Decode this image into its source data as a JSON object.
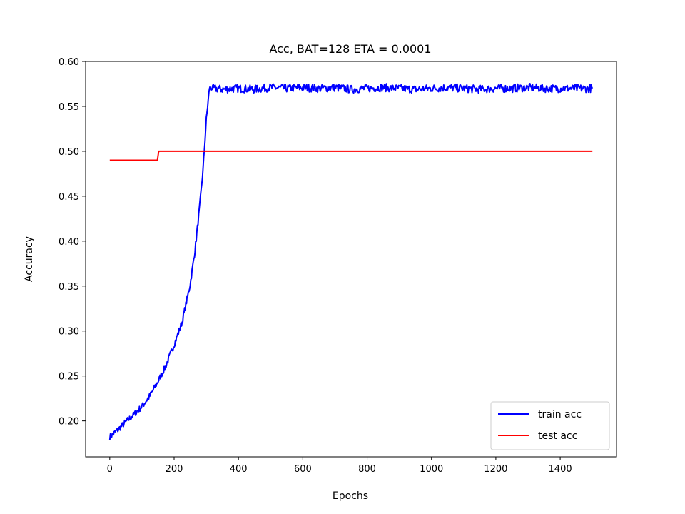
{
  "chart_data": {
    "type": "line",
    "title": "Acc, BAT=128 ETA = 0.0001",
    "xlabel": "Epochs",
    "ylabel": "Accuracy",
    "xlim": [
      -75,
      1575
    ],
    "ylim": [
      0.16,
      0.6
    ],
    "xticks": [
      0,
      200,
      400,
      600,
      800,
      1000,
      1200,
      1400
    ],
    "yticks": [
      0.2,
      0.25,
      0.3,
      0.35,
      0.4,
      0.45,
      0.5,
      0.55,
      0.6
    ],
    "grid": false,
    "legend_position": "lower-right",
    "series": [
      {
        "name": "train acc",
        "color": "#0000ff",
        "x": [
          0,
          25,
          50,
          75,
          100,
          125,
          150,
          175,
          200,
          225,
          250,
          265,
          280,
          290,
          300,
          310,
          320,
          350,
          400,
          450,
          500,
          550,
          600,
          650,
          700,
          750,
          800,
          850,
          900,
          950,
          1000,
          1050,
          1100,
          1150,
          1200,
          1250,
          1300,
          1350,
          1400,
          1450,
          1500
        ],
        "y": [
          0.182,
          0.19,
          0.199,
          0.207,
          0.216,
          0.228,
          0.244,
          0.262,
          0.285,
          0.31,
          0.352,
          0.39,
          0.44,
          0.48,
          0.535,
          0.571,
          0.57,
          0.569,
          0.57,
          0.569,
          0.571,
          0.57,
          0.571,
          0.57,
          0.571,
          0.569,
          0.57,
          0.571,
          0.57,
          0.569,
          0.57,
          0.571,
          0.57,
          0.569,
          0.57,
          0.57,
          0.571,
          0.57,
          0.57,
          0.57,
          0.57
        ]
      },
      {
        "name": "test acc",
        "color": "#ff0000",
        "x": [
          0,
          148,
          148,
          152,
          1500
        ],
        "y": [
          0.49,
          0.49,
          0.49,
          0.5,
          0.5
        ]
      }
    ]
  }
}
